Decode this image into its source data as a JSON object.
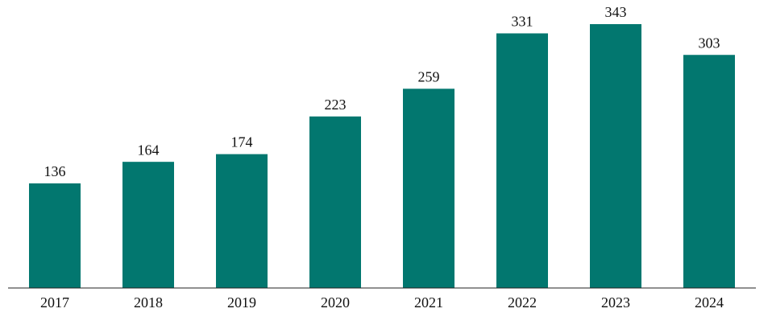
{
  "chart_data": {
    "type": "bar",
    "categories": [
      "2017",
      "2018",
      "2019",
      "2020",
      "2021",
      "2022",
      "2023",
      "2024"
    ],
    "values": [
      136,
      164,
      174,
      223,
      259,
      331,
      343,
      303
    ],
    "color": "#02776f"
  }
}
